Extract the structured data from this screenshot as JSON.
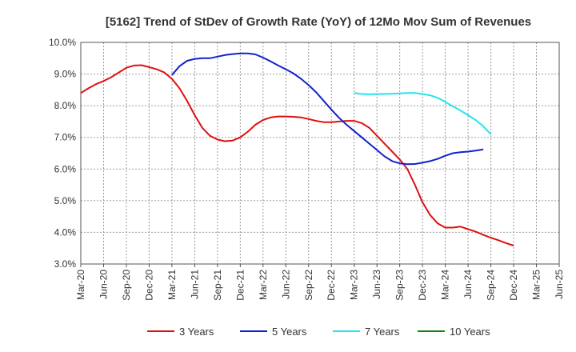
{
  "chart_data": {
    "type": "line",
    "title": "[5162]  Trend of StDev of Growth Rate (YoY) of 12Mo Mov Sum of Revenues",
    "xlabel": "",
    "ylabel": "",
    "ylim": [
      3.0,
      10.0
    ],
    "y_ticks": [
      "3.0%",
      "4.0%",
      "5.0%",
      "6.0%",
      "7.0%",
      "8.0%",
      "9.0%",
      "10.0%"
    ],
    "x_ticks": [
      "Mar-20",
      "Jun-20",
      "Sep-20",
      "Dec-20",
      "Mar-21",
      "Jun-21",
      "Sep-21",
      "Dec-21",
      "Mar-22",
      "Jun-22",
      "Sep-22",
      "Dec-22",
      "Mar-23",
      "Jun-23",
      "Sep-23",
      "Dec-23",
      "Mar-24",
      "Jun-24",
      "Sep-24",
      "Dec-24",
      "Mar-25",
      "Jun-25"
    ],
    "x_start": "Mar-20",
    "series": [
      {
        "name": "3 Years",
        "color": "#dd1111",
        "start_index": 0,
        "values": [
          8.4,
          8.55,
          8.68,
          8.78,
          8.9,
          9.05,
          9.2,
          9.27,
          9.28,
          9.22,
          9.15,
          9.05,
          8.85,
          8.55,
          8.15,
          7.7,
          7.3,
          7.05,
          6.93,
          6.88,
          6.9,
          7.0,
          7.18,
          7.4,
          7.55,
          7.63,
          7.66,
          7.66,
          7.65,
          7.63,
          7.58,
          7.52,
          7.48,
          7.48,
          7.5,
          7.52,
          7.52,
          7.45,
          7.3,
          7.05,
          6.8,
          6.55,
          6.3,
          6.0,
          5.5,
          4.95,
          4.55,
          4.28,
          4.15,
          4.15,
          4.18,
          4.1,
          4.02,
          3.92,
          3.83,
          3.75,
          3.66,
          3.58
        ]
      },
      {
        "name": "5 Years",
        "color": "#1122cc",
        "start_index": 12,
        "values": [
          8.97,
          9.25,
          9.42,
          9.48,
          9.5,
          9.5,
          9.55,
          9.6,
          9.63,
          9.65,
          9.65,
          9.62,
          9.52,
          9.4,
          9.27,
          9.15,
          9.02,
          8.85,
          8.65,
          8.42,
          8.15,
          7.88,
          7.62,
          7.4,
          7.2,
          7.0,
          6.8,
          6.6,
          6.4,
          6.25,
          6.18,
          6.15,
          6.16,
          6.2,
          6.25,
          6.32,
          6.42,
          6.5,
          6.53,
          6.55,
          6.58,
          6.62
        ]
      },
      {
        "name": "7 Years",
        "color": "#22e5ee",
        "start_index": 36,
        "values": [
          8.4,
          8.37,
          8.36,
          8.37,
          8.37,
          8.38,
          8.39,
          8.4,
          8.4,
          8.37,
          8.33,
          8.25,
          8.12,
          7.98,
          7.85,
          7.7,
          7.55,
          7.35,
          7.1
        ]
      },
      {
        "name": "10 Years",
        "color": "#118811",
        "start_index": 0,
        "values": []
      }
    ]
  }
}
